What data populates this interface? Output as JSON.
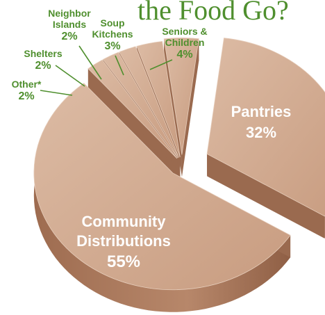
{
  "chart_data": {
    "type": "pie",
    "title": "the Food Go?",
    "slices": [
      {
        "label": "Pantries",
        "value": 32,
        "display": "32%"
      },
      {
        "label": "Community Distributions",
        "value": 55,
        "display": "55%"
      },
      {
        "label": "Other*",
        "value": 2,
        "display": "2%"
      },
      {
        "label": "Shelters",
        "value": 2,
        "display": "2%"
      },
      {
        "label": "Neighbor Islands",
        "value": 2,
        "display": "2%"
      },
      {
        "label": "Soup Kitchens",
        "value": 3,
        "display": "3%"
      },
      {
        "label": "Seniors & Children",
        "value": 4,
        "display": "4%"
      }
    ],
    "colors": {
      "slice_top": "#d2ab91",
      "slice_side": "#a8775a",
      "label_text": "#4f8f2e",
      "inner_text": "#ffffff"
    }
  }
}
